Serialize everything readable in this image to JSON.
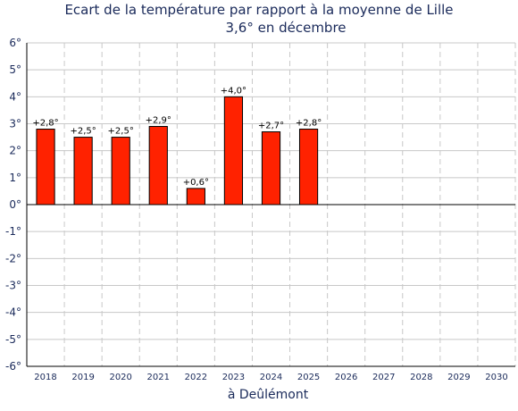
{
  "chart_data": {
    "type": "bar",
    "title": "Ecart de la température par rapport à la moyenne de Lille",
    "subtitle": "3,6° en décembre",
    "xlabel": "à Deûlémont",
    "ylabel": "",
    "categories": [
      "2018",
      "2019",
      "2020",
      "2021",
      "2022",
      "2023",
      "2024",
      "2025",
      "2026",
      "2027",
      "2028",
      "2029",
      "2030"
    ],
    "values": [
      2.8,
      2.5,
      2.5,
      2.9,
      0.6,
      4.0,
      2.7,
      2.8,
      null,
      null,
      null,
      null,
      null
    ],
    "value_labels": [
      "+2,8°",
      "+2,5°",
      "+2,5°",
      "+2,9°",
      "+0,6°",
      "+4,0°",
      "+2,7°",
      "+2,8°",
      "",
      "",
      "",
      "",
      ""
    ],
    "ylim": [
      -6,
      6
    ],
    "yticks": [
      6,
      5,
      4,
      3,
      2,
      1,
      0,
      -1,
      -2,
      -3,
      -4,
      -5,
      -6
    ],
    "ytick_labels": [
      "6°",
      "5°",
      "4°",
      "3°",
      "2°",
      "1°",
      "0°",
      "-1°",
      "-2°",
      "-3°",
      "-4°",
      "-5°",
      "-6°"
    ],
    "grid": true,
    "bar_color": "#ff2200",
    "axis_color": "#000000",
    "grid_color": "#c8c8c8"
  }
}
